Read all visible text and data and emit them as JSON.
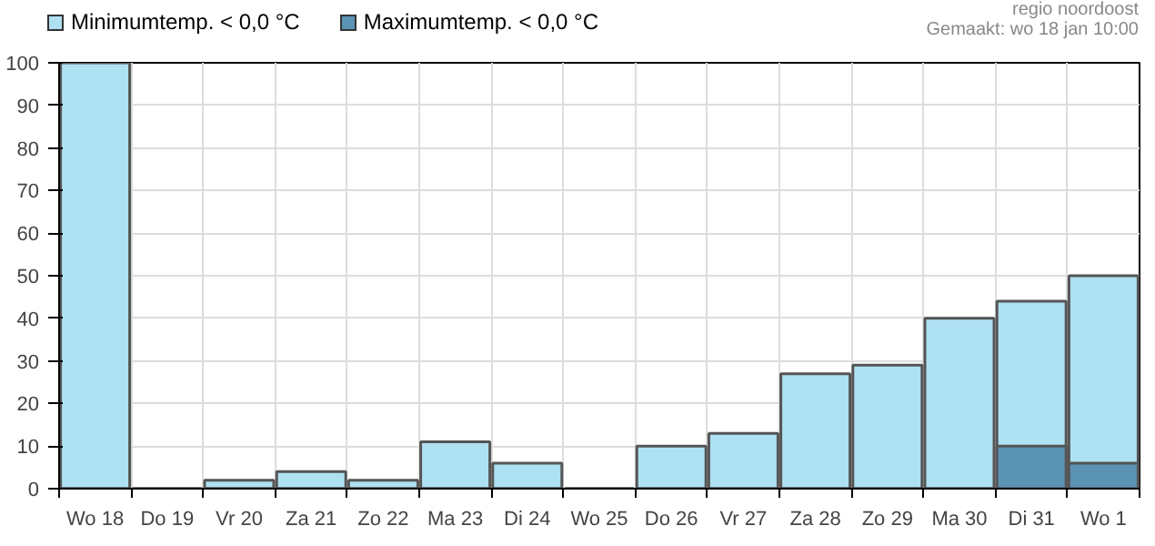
{
  "chart_data": {
    "type": "bar",
    "categories": [
      "Wo 18",
      "Do 19",
      "Vr 20",
      "Za 21",
      "Zo 22",
      "Ma 23",
      "Di 24",
      "Wo 25",
      "Do 26",
      "Vr 27",
      "Za 28",
      "Zo 29",
      "Ma 30",
      "Di 31",
      "Wo 1"
    ],
    "series": [
      {
        "name": "Minimumtemp. < 0,0 °C",
        "color": "#aee1f2",
        "values": [
          100,
          0,
          2,
          4,
          2,
          11,
          6,
          0,
          10,
          13,
          27,
          29,
          40,
          44,
          50
        ]
      },
      {
        "name": "Maximumtemp. < 0,0 °C",
        "color": "#5b93b5",
        "values": [
          0,
          0,
          0,
          0,
          0,
          0,
          0,
          0,
          0,
          0,
          0,
          0,
          0,
          10,
          6
        ]
      }
    ],
    "ylim": [
      0,
      100
    ],
    "yticks": [
      0,
      10,
      20,
      30,
      40,
      50,
      60,
      70,
      80,
      90,
      100
    ],
    "grid": true,
    "legend": "top left",
    "annotations": [
      "regio noordoost",
      "Gemaakt: wo 18 jan 10:00"
    ]
  }
}
